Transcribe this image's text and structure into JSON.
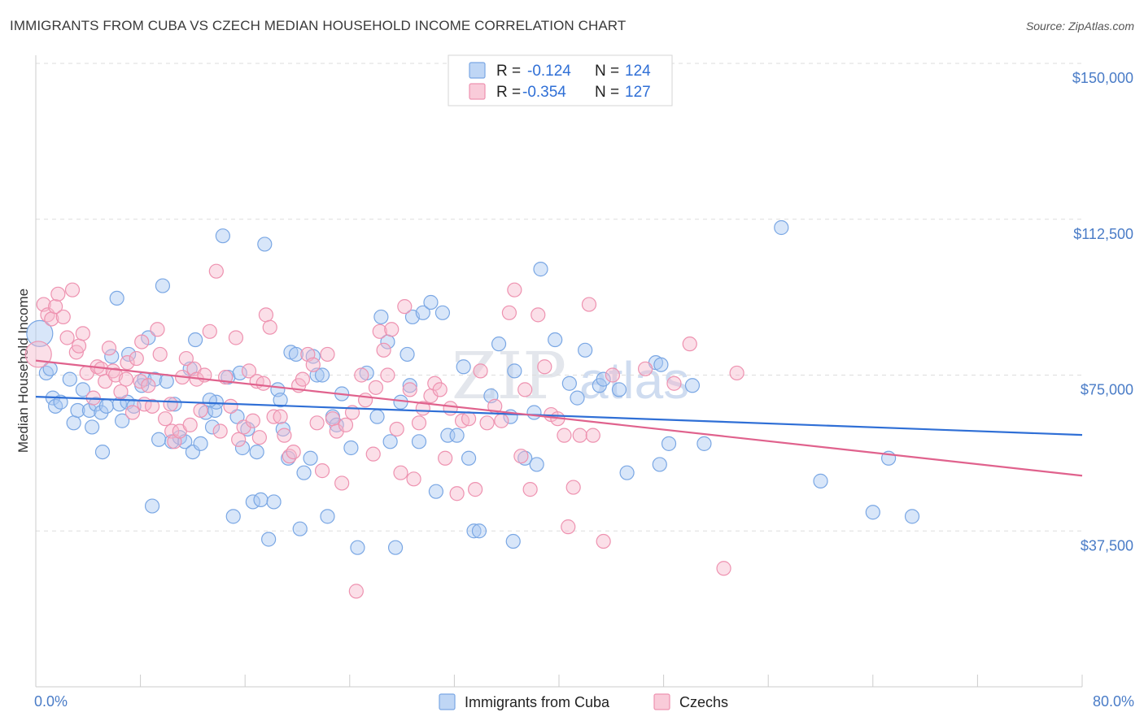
{
  "header": {
    "title": "IMMIGRANTS FROM CUBA VS CZECH MEDIAN HOUSEHOLD INCOME CORRELATION CHART",
    "source": "Source: ZipAtlas.com"
  },
  "watermark": {
    "zip": "ZIP",
    "atlas": "atlas"
  },
  "colors": {
    "cuba_fill": "#a9c8f2",
    "cuba_stroke": "#7aa7e4",
    "cuba_line": "#2f6fd6",
    "czech_fill": "#f7b9cc",
    "czech_stroke": "#ee92b0",
    "czech_line": "#e0628d",
    "grid": "#dddddd",
    "axis_text": "#4a7cc7"
  },
  "legend": {
    "rows": [
      {
        "r_label": "R =",
        "r_value": "-0.124",
        "n_label": "N =",
        "n_value": "124"
      },
      {
        "r_label": "R =",
        "r_value": "-0.354",
        "n_label": "N =",
        "n_value": "127"
      }
    ]
  },
  "chart_data": {
    "type": "scatter",
    "title": "IMMIGRANTS FROM CUBA VS CZECH MEDIAN HOUSEHOLD INCOME CORRELATION CHART",
    "xlabel": "",
    "ylabel": "Median Household Income",
    "xlim": [
      0,
      80
    ],
    "ylim": [
      0,
      150000
    ],
    "x_tick_labels": [
      "0.0%",
      "80.0%"
    ],
    "y_tick_labels": [
      "$37,500",
      "$75,000",
      "$112,500",
      "$150,000"
    ],
    "y_ticks": [
      37500,
      75000,
      112500,
      150000
    ],
    "grid": true,
    "legend_position": "top-center",
    "series": [
      {
        "name": "Immigrants from Cuba",
        "r": -0.124,
        "n": 124,
        "trend": {
          "x": [
            0,
            80
          ],
          "y": [
            69800,
            60600
          ]
        },
        "points": [
          [
            0.3,
            85000
          ],
          [
            0.8,
            75500
          ],
          [
            1.1,
            76500
          ],
          [
            1.3,
            69500
          ],
          [
            1.5,
            67500
          ],
          [
            1.9,
            68500
          ],
          [
            2.6,
            74000
          ],
          [
            2.9,
            63500
          ],
          [
            3.2,
            66500
          ],
          [
            3.6,
            71500
          ],
          [
            4.1,
            66500
          ],
          [
            4.3,
            62500
          ],
          [
            4.6,
            68000
          ],
          [
            5.0,
            66000
          ],
          [
            5.1,
            56500
          ],
          [
            5.4,
            67500
          ],
          [
            5.8,
            79500
          ],
          [
            6.2,
            93500
          ],
          [
            6.4,
            68000
          ],
          [
            6.6,
            64000
          ],
          [
            7.0,
            68500
          ],
          [
            7.1,
            80000
          ],
          [
            7.5,
            67500
          ],
          [
            8.1,
            72500
          ],
          [
            8.3,
            74000
          ],
          [
            8.6,
            84000
          ],
          [
            8.9,
            43500
          ],
          [
            9.1,
            74000
          ],
          [
            9.4,
            59500
          ],
          [
            9.7,
            96500
          ],
          [
            10.0,
            73500
          ],
          [
            10.4,
            59000
          ],
          [
            10.6,
            68000
          ],
          [
            11.0,
            60000
          ],
          [
            11.4,
            59000
          ],
          [
            11.8,
            76500
          ],
          [
            12.0,
            56500
          ],
          [
            12.2,
            83500
          ],
          [
            12.6,
            58500
          ],
          [
            13.0,
            66000
          ],
          [
            13.5,
            62500
          ],
          [
            13.7,
            66500
          ],
          [
            13.8,
            68500
          ],
          [
            14.3,
            108500
          ],
          [
            14.7,
            74500
          ],
          [
            15.1,
            41000
          ],
          [
            15.4,
            65000
          ],
          [
            15.6,
            75500
          ],
          [
            15.8,
            57500
          ],
          [
            16.2,
            62000
          ],
          [
            16.6,
            44500
          ],
          [
            16.9,
            56500
          ],
          [
            17.2,
            45000
          ],
          [
            17.5,
            106500
          ],
          [
            17.8,
            35500
          ],
          [
            18.2,
            44500
          ],
          [
            18.5,
            71500
          ],
          [
            18.7,
            69000
          ],
          [
            18.9,
            62000
          ],
          [
            19.3,
            55000
          ],
          [
            19.5,
            80500
          ],
          [
            19.9,
            80000
          ],
          [
            20.2,
            38000
          ],
          [
            20.5,
            51500
          ],
          [
            21.0,
            55000
          ],
          [
            21.2,
            79500
          ],
          [
            21.5,
            75000
          ],
          [
            21.9,
            75000
          ],
          [
            22.3,
            41000
          ],
          [
            22.7,
            65000
          ],
          [
            23.0,
            63000
          ],
          [
            23.4,
            70500
          ],
          [
            24.1,
            57500
          ],
          [
            24.6,
            33500
          ],
          [
            25.3,
            75500
          ],
          [
            26.1,
            65000
          ],
          [
            26.4,
            89000
          ],
          [
            26.9,
            83000
          ],
          [
            27.1,
            59000
          ],
          [
            27.5,
            33500
          ],
          [
            27.9,
            68500
          ],
          [
            28.4,
            80000
          ],
          [
            28.6,
            72500
          ],
          [
            28.8,
            89000
          ],
          [
            29.3,
            59000
          ],
          [
            29.6,
            90000
          ],
          [
            30.2,
            92500
          ],
          [
            30.6,
            47000
          ],
          [
            31.1,
            90000
          ],
          [
            31.5,
            60500
          ],
          [
            32.2,
            60500
          ],
          [
            32.7,
            77000
          ],
          [
            33.1,
            55000
          ],
          [
            33.5,
            37500
          ],
          [
            33.9,
            37500
          ],
          [
            34.8,
            70000
          ],
          [
            35.4,
            82500
          ],
          [
            36.3,
            65000
          ],
          [
            36.5,
            35000
          ],
          [
            36.6,
            76000
          ],
          [
            37.4,
            55000
          ],
          [
            38.1,
            66000
          ],
          [
            38.3,
            53500
          ],
          [
            38.6,
            100500
          ],
          [
            39.7,
            83500
          ],
          [
            40.8,
            73000
          ],
          [
            41.4,
            69500
          ],
          [
            42.0,
            81000
          ],
          [
            43.1,
            72500
          ],
          [
            43.4,
            74000
          ],
          [
            44.6,
            71500
          ],
          [
            45.2,
            51500
          ],
          [
            47.4,
            78000
          ],
          [
            47.7,
            53500
          ],
          [
            48.4,
            58500
          ],
          [
            50.2,
            72500
          ],
          [
            51.1,
            58500
          ],
          [
            57.0,
            110500
          ],
          [
            60.0,
            49500
          ],
          [
            64.0,
            42000
          ],
          [
            65.2,
            55000
          ],
          [
            67.0,
            41000
          ],
          [
            47.8,
            77500
          ],
          [
            13.3,
            69000
          ]
        ]
      },
      {
        "name": "Czechs",
        "r": -0.354,
        "n": 127,
        "trend": {
          "x": [
            0,
            80
          ],
          "y": [
            78500,
            50800
          ]
        },
        "points": [
          [
            0.2,
            80000
          ],
          [
            0.6,
            92000
          ],
          [
            0.9,
            89500
          ],
          [
            1.2,
            88500
          ],
          [
            1.5,
            91500
          ],
          [
            1.7,
            94500
          ],
          [
            2.1,
            89000
          ],
          [
            2.4,
            84000
          ],
          [
            2.8,
            95500
          ],
          [
            3.1,
            80500
          ],
          [
            3.3,
            82000
          ],
          [
            3.6,
            85000
          ],
          [
            3.9,
            75500
          ],
          [
            4.4,
            69500
          ],
          [
            4.7,
            77000
          ],
          [
            5.0,
            76500
          ],
          [
            5.3,
            73500
          ],
          [
            5.6,
            81500
          ],
          [
            5.9,
            76000
          ],
          [
            6.1,
            75000
          ],
          [
            6.5,
            71000
          ],
          [
            6.9,
            74000
          ],
          [
            7.0,
            78000
          ],
          [
            7.4,
            66000
          ],
          [
            7.7,
            79000
          ],
          [
            8.0,
            73500
          ],
          [
            8.1,
            83000
          ],
          [
            8.3,
            68000
          ],
          [
            8.6,
            72500
          ],
          [
            8.9,
            67500
          ],
          [
            9.3,
            86000
          ],
          [
            9.5,
            80000
          ],
          [
            9.9,
            64500
          ],
          [
            10.3,
            68000
          ],
          [
            10.4,
            61500
          ],
          [
            10.6,
            59000
          ],
          [
            11.0,
            61500
          ],
          [
            11.2,
            74500
          ],
          [
            11.5,
            79000
          ],
          [
            11.8,
            63000
          ],
          [
            12.1,
            76500
          ],
          [
            12.3,
            74000
          ],
          [
            12.6,
            66500
          ],
          [
            12.9,
            75000
          ],
          [
            13.3,
            85500
          ],
          [
            13.8,
            100000
          ],
          [
            14.1,
            61500
          ],
          [
            14.5,
            74500
          ],
          [
            14.9,
            67500
          ],
          [
            15.3,
            84000
          ],
          [
            15.5,
            59500
          ],
          [
            15.9,
            62500
          ],
          [
            16.3,
            76000
          ],
          [
            16.6,
            64000
          ],
          [
            16.9,
            73500
          ],
          [
            17.1,
            60000
          ],
          [
            17.4,
            73000
          ],
          [
            17.6,
            89500
          ],
          [
            17.9,
            86500
          ],
          [
            18.2,
            65000
          ],
          [
            18.7,
            65000
          ],
          [
            19.0,
            60500
          ],
          [
            19.4,
            55500
          ],
          [
            19.7,
            56500
          ],
          [
            20.1,
            72500
          ],
          [
            20.4,
            74000
          ],
          [
            20.8,
            80000
          ],
          [
            21.2,
            77500
          ],
          [
            21.5,
            63500
          ],
          [
            21.9,
            52000
          ],
          [
            22.3,
            80000
          ],
          [
            22.7,
            64500
          ],
          [
            23.0,
            61500
          ],
          [
            23.4,
            49000
          ],
          [
            23.7,
            63000
          ],
          [
            24.2,
            66000
          ],
          [
            24.5,
            23000
          ],
          [
            24.9,
            75000
          ],
          [
            25.2,
            69000
          ],
          [
            25.8,
            56000
          ],
          [
            26.0,
            72000
          ],
          [
            26.3,
            85500
          ],
          [
            26.6,
            81000
          ],
          [
            26.9,
            75000
          ],
          [
            27.2,
            86000
          ],
          [
            27.6,
            62000
          ],
          [
            27.9,
            51500
          ],
          [
            28.2,
            91500
          ],
          [
            28.6,
            71500
          ],
          [
            28.9,
            50000
          ],
          [
            29.3,
            63500
          ],
          [
            29.6,
            67000
          ],
          [
            30.2,
            70000
          ],
          [
            30.5,
            73000
          ],
          [
            30.9,
            71500
          ],
          [
            31.3,
            55000
          ],
          [
            31.7,
            67000
          ],
          [
            32.2,
            46500
          ],
          [
            32.6,
            64000
          ],
          [
            33.1,
            64500
          ],
          [
            33.6,
            47500
          ],
          [
            34.0,
            76000
          ],
          [
            34.5,
            63500
          ],
          [
            35.1,
            67500
          ],
          [
            35.6,
            64000
          ],
          [
            36.2,
            90000
          ],
          [
            36.6,
            95500
          ],
          [
            37.1,
            55500
          ],
          [
            37.4,
            71500
          ],
          [
            37.8,
            47500
          ],
          [
            38.4,
            89500
          ],
          [
            38.9,
            77000
          ],
          [
            39.4,
            65500
          ],
          [
            39.9,
            64500
          ],
          [
            40.4,
            60500
          ],
          [
            40.7,
            38500
          ],
          [
            41.1,
            48000
          ],
          [
            41.6,
            60500
          ],
          [
            42.3,
            92000
          ],
          [
            42.6,
            60500
          ],
          [
            43.4,
            35000
          ],
          [
            44.1,
            75000
          ],
          [
            46.6,
            76500
          ],
          [
            48.8,
            73000
          ],
          [
            50.0,
            82500
          ],
          [
            52.6,
            28500
          ],
          [
            53.6,
            75500
          ]
        ]
      }
    ]
  },
  "bottom_legend": {
    "items": [
      {
        "label": "Immigrants from Cuba"
      },
      {
        "label": "Czechs"
      }
    ]
  }
}
